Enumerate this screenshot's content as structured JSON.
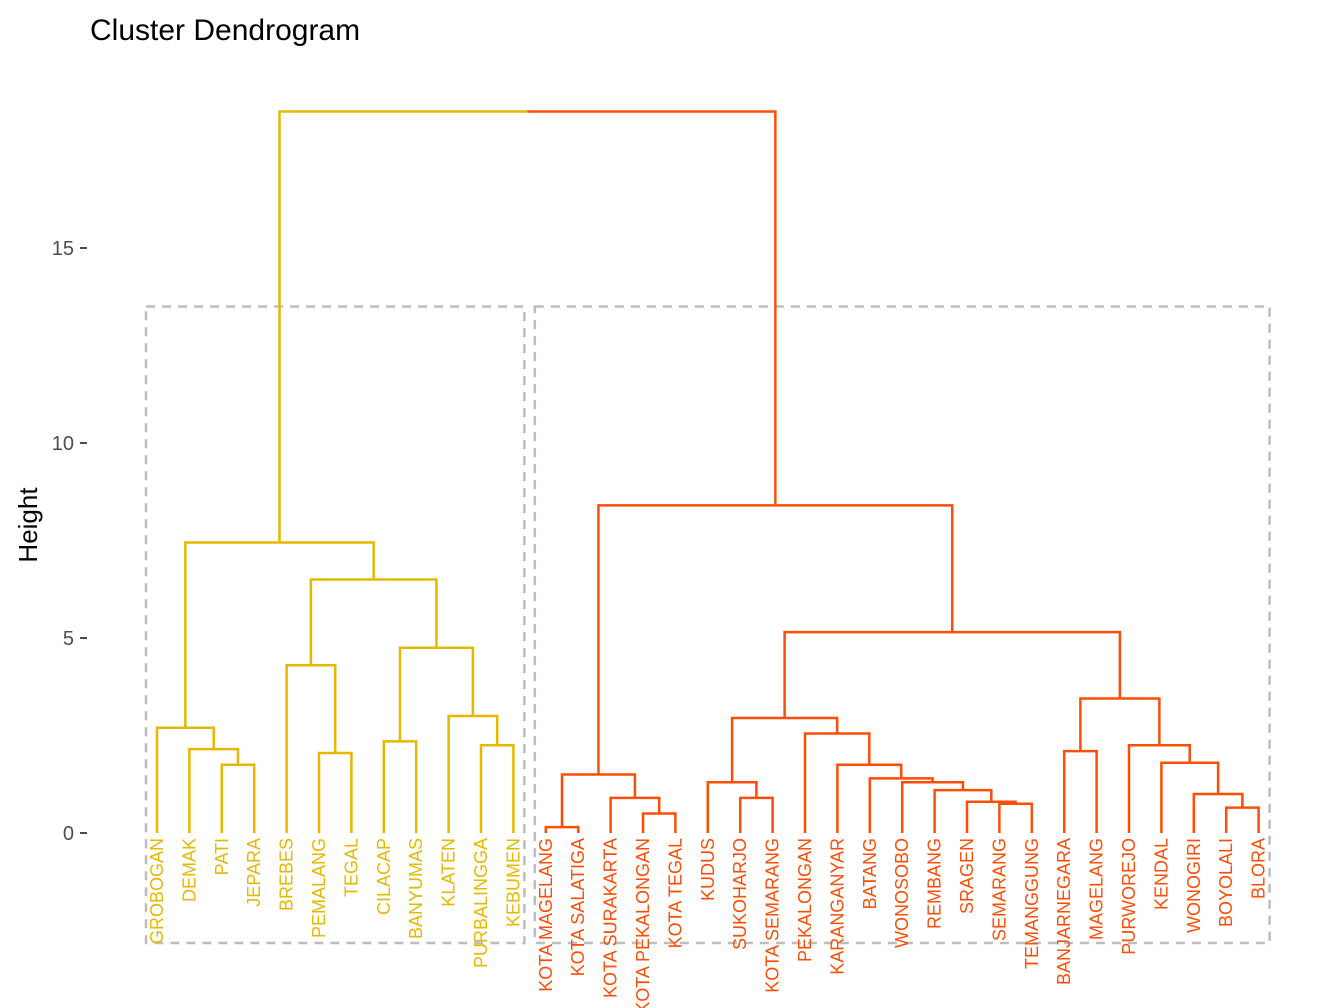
{
  "chart_data": {
    "type": "dendrogram",
    "title": "Cluster Dendrogram",
    "xlabel": "",
    "ylabel": "Height",
    "ylim": [
      0,
      19
    ],
    "yticks": [
      0,
      5,
      10,
      15
    ],
    "k_clusters": 2,
    "rect_height": 13.5,
    "colors": {
      "cluster1": "#E7B800",
      "cluster2": "#FC4E07",
      "rect": "#BDBDBD",
      "axis_text": "#4D4D4D"
    },
    "clusters": [
      {
        "name": "cluster1",
        "color": "#E7B800",
        "leaves": [
          "GROBOGAN",
          "DEMAK",
          "PATI",
          "JEPARA",
          "BREBES",
          "PEMALANG",
          "TEGAL",
          "CILACAP",
          "BANYUMAS",
          "KLATEN",
          "PURBALINGGA",
          "KEBUMEN"
        ]
      },
      {
        "name": "cluster2",
        "color": "#FC4E07",
        "leaves": [
          "KOTA MAGELANG",
          "KOTA SALATIGA",
          "KOTA SURAKARTA",
          "KOTA PEKALONGAN",
          "KOTA TEGAL",
          "KUDUS",
          "SUKOHARJO",
          "KOTA SEMARANG",
          "PEKALONGAN",
          "KARANGANYAR",
          "BATANG",
          "WONOSOBO",
          "REMBANG",
          "SRAGEN",
          "SEMARANG",
          "TEMANGGUNG",
          "BANJARNEGARA",
          "MAGELANG",
          "PURWOREJO",
          "KENDAL",
          "WONOGIRI",
          "BOYOLALI",
          "BLORA"
        ]
      }
    ],
    "merges": [
      {
        "left": "PATI",
        "right": "JEPARA",
        "height": 1.75
      },
      {
        "left": "DEMAK",
        "right": "m1",
        "height": 2.15
      },
      {
        "left": "GROBOGAN",
        "right": "m2",
        "height": 2.7
      },
      {
        "left": "PEMALANG",
        "right": "TEGAL",
        "height": 2.05
      },
      {
        "left": "BREBES",
        "right": "m4",
        "height": 4.3
      },
      {
        "left": "CILACAP",
        "right": "BANYUMAS",
        "height": 2.35
      },
      {
        "left": "PURBALINGGA",
        "right": "KEBUMEN",
        "height": 2.25
      },
      {
        "left": "KLATEN",
        "right": "m7",
        "height": 3.0
      },
      {
        "left": "m6",
        "right": "m8",
        "height": 4.75
      },
      {
        "left": "m5",
        "right": "m9",
        "height": 6.5
      },
      {
        "left": "m3",
        "right": "m10",
        "height": 7.45
      },
      {
        "left": "KOTA MAGELANG",
        "right": "KOTA SALATIGA",
        "height": 0.15
      },
      {
        "left": "KOTA PEKALONGAN",
        "right": "KOTA TEGAL",
        "height": 0.5
      },
      {
        "left": "KOTA SURAKARTA",
        "right": "m13",
        "height": 0.9
      },
      {
        "left": "m12",
        "right": "m14",
        "height": 1.5
      },
      {
        "left": "SUKOHARJO",
        "right": "KOTA SEMARANG",
        "height": 0.9
      },
      {
        "left": "KUDUS",
        "right": "m16",
        "height": 1.3
      },
      {
        "left": "SEMARANG",
        "right": "TEMANGGUNG",
        "height": 0.75
      },
      {
        "left": "SRAGEN",
        "right": "m18",
        "height": 0.8
      },
      {
        "left": "REMBANG",
        "right": "m19",
        "height": 1.1
      },
      {
        "left": "WONOSOBO",
        "right": "m20",
        "height": 1.3
      },
      {
        "left": "BATANG",
        "right": "m21",
        "height": 1.4
      },
      {
        "left": "KARANGANYAR",
        "right": "m22",
        "height": 1.75
      },
      {
        "left": "PEKALONGAN",
        "right": "m23",
        "height": 2.55
      },
      {
        "left": "m17",
        "right": "m24",
        "height": 2.95
      },
      {
        "left": "BANJARNEGARA",
        "right": "MAGELANG",
        "height": 2.1
      },
      {
        "left": "BOYOLALI",
        "right": "BLORA",
        "height": 0.65
      },
      {
        "left": "WONOGIRI",
        "right": "m27",
        "height": 1.0
      },
      {
        "left": "KENDAL",
        "right": "m28",
        "height": 1.8
      },
      {
        "left": "PURWOREJO",
        "right": "m29",
        "height": 2.25
      },
      {
        "left": "m26",
        "right": "m30",
        "height": 3.45
      },
      {
        "left": "m25",
        "right": "m31",
        "height": 5.15
      },
      {
        "left": "m15",
        "right": "m32",
        "height": 8.4
      },
      {
        "left": "m11",
        "right": "m33",
        "height": 18.5
      }
    ]
  }
}
